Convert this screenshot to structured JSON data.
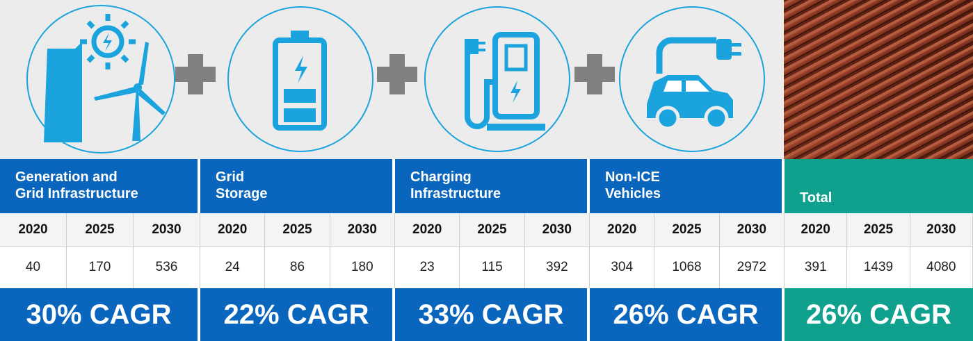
{
  "groups": [
    {
      "title": [
        "Generation and",
        "Grid Infrastructure"
      ],
      "years": [
        "2020",
        "2025",
        "2030"
      ],
      "values": [
        40,
        170,
        536
      ],
      "cagr": "30% CAGR"
    },
    {
      "title": [
        "Grid",
        "Storage"
      ],
      "years": [
        "2020",
        "2025",
        "2030"
      ],
      "values": [
        24,
        86,
        180
      ],
      "cagr": "22% CAGR"
    },
    {
      "title": [
        "Charging",
        "Infrastructure"
      ],
      "years": [
        "2020",
        "2025",
        "2030"
      ],
      "values": [
        23,
        115,
        392
      ],
      "cagr": "33% CAGR"
    },
    {
      "title": [
        "Non-ICE",
        "Vehicles"
      ],
      "years": [
        "2020",
        "2025",
        "2030"
      ],
      "values": [
        304,
        1068,
        2972
      ],
      "cagr": "26% CAGR"
    },
    {
      "title": [
        "Total"
      ],
      "years": [
        "2020",
        "2025",
        "2030"
      ],
      "values": [
        391,
        1439,
        4080
      ],
      "cagr": "26% CAGR"
    }
  ]
}
